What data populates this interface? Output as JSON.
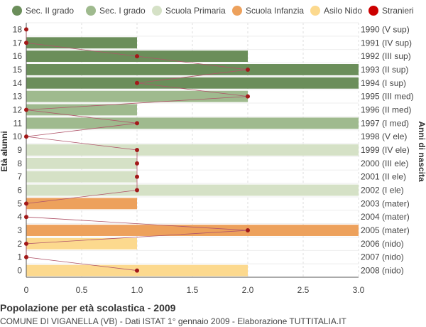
{
  "chart_data": {
    "type": "bar",
    "orientation": "horizontal",
    "ylabel": "Età alunni",
    "y2label": "Anni di nascita",
    "xlim": [
      0,
      3
    ],
    "x_ticks": [
      "0",
      "0.5",
      "1.0",
      "1.5",
      "2.0",
      "2.5",
      "3.0"
    ],
    "x_tick_values": [
      0,
      0.5,
      1,
      1.5,
      2,
      2.5,
      3
    ],
    "grid": true,
    "legend_position": "top",
    "legend": [
      {
        "name": "Sec. II grado",
        "color": "#6b8e5a",
        "shape": "circle"
      },
      {
        "name": "Sec. I grado",
        "color": "#9fba8e",
        "shape": "circle"
      },
      {
        "name": "Scuola Primaria",
        "color": "#d5e1c6",
        "shape": "circle"
      },
      {
        "name": "Scuola Infanzia",
        "color": "#eda15c",
        "shape": "circle"
      },
      {
        "name": "Asilo Nido",
        "color": "#fcd98e",
        "shape": "circle"
      },
      {
        "name": "Stranieri",
        "color": "#cc0000",
        "shape": "circle"
      }
    ],
    "rows": [
      {
        "age": "18",
        "birth": "1990 (V sup)",
        "value": 0,
        "group": 0,
        "foreign": 0
      },
      {
        "age": "17",
        "birth": "1991 (IV sup)",
        "value": 1,
        "group": 0,
        "foreign": 0
      },
      {
        "age": "16",
        "birth": "1992 (III sup)",
        "value": 2,
        "group": 0,
        "foreign": 1
      },
      {
        "age": "15",
        "birth": "1993 (II sup)",
        "value": 3,
        "group": 0,
        "foreign": 2
      },
      {
        "age": "14",
        "birth": "1994 (I sup)",
        "value": 3,
        "group": 0,
        "foreign": 1
      },
      {
        "age": "13",
        "birth": "1995 (III med)",
        "value": 2,
        "group": 1,
        "foreign": 2
      },
      {
        "age": "12",
        "birth": "1996 (II med)",
        "value": 1,
        "group": 1,
        "foreign": 0
      },
      {
        "age": "11",
        "birth": "1997 (I med)",
        "value": 3,
        "group": 1,
        "foreign": 1
      },
      {
        "age": "10",
        "birth": "1998 (V ele)",
        "value": 0,
        "group": 2,
        "foreign": 0
      },
      {
        "age": "9",
        "birth": "1999 (IV ele)",
        "value": 3,
        "group": 2,
        "foreign": 1
      },
      {
        "age": "8",
        "birth": "2000 (III ele)",
        "value": 1,
        "group": 2,
        "foreign": 1
      },
      {
        "age": "7",
        "birth": "2001 (II ele)",
        "value": 1,
        "group": 2,
        "foreign": 1
      },
      {
        "age": "6",
        "birth": "2002 (I ele)",
        "value": 3,
        "group": 2,
        "foreign": 1
      },
      {
        "age": "5",
        "birth": "2003 (mater)",
        "value": 1,
        "group": 3,
        "foreign": 0
      },
      {
        "age": "4",
        "birth": "2004 (mater)",
        "value": 0,
        "group": 3,
        "foreign": 0
      },
      {
        "age": "3",
        "birth": "2005 (mater)",
        "value": 3,
        "group": 3,
        "foreign": 2
      },
      {
        "age": "2",
        "birth": "2006 (nido)",
        "value": 1,
        "group": 4,
        "foreign": 0
      },
      {
        "age": "1",
        "birth": "2007 (nido)",
        "value": 0,
        "group": 4,
        "foreign": 0
      },
      {
        "age": "0",
        "birth": "2008 (nido)",
        "value": 2,
        "group": 4,
        "foreign": 1
      }
    ],
    "grid_color": "#dddddd",
    "line_color": "#b0556a",
    "dot_color": "#a31919"
  },
  "footer": {
    "title": "Popolazione per età scolastica - 2009",
    "subtitle": "COMUNE DI VIGANELLA (VB) - Dati ISTAT 1° gennaio 2009 - Elaborazione TUTTITALIA.IT"
  }
}
